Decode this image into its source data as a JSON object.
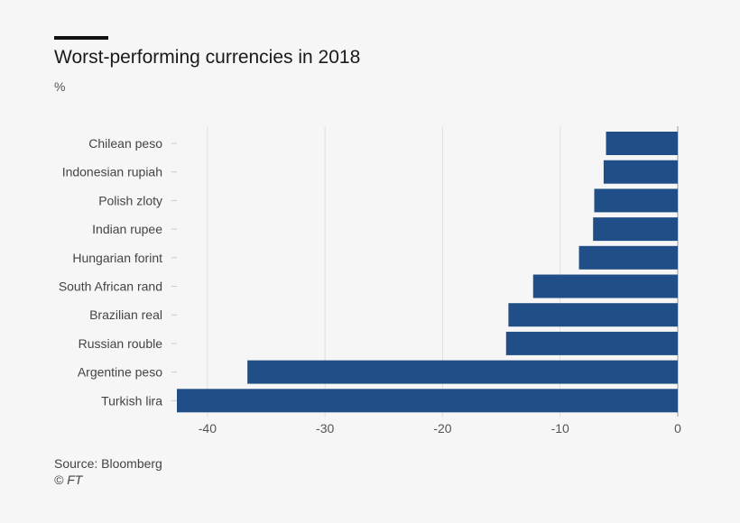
{
  "chart_data": {
    "type": "bar",
    "orientation": "horizontal",
    "title": "Worst-performing currencies in 2018",
    "subtitle": "%",
    "categories": [
      "Chilean peso",
      "Indonesian rupiah",
      "Polish zloty",
      "Indian rupee",
      "Hungarian forint",
      "South African rand",
      "Brazilian real",
      "Russian rouble",
      "Argentine peso",
      "Turkish lira"
    ],
    "values": [
      -6.1,
      -6.3,
      -7.1,
      -7.2,
      -8.4,
      -12.3,
      -14.4,
      -14.6,
      -36.6,
      -42.6
    ],
    "xlim": [
      -42.6,
      0
    ],
    "xticks": [
      -40,
      -30,
      -20,
      -10,
      0
    ],
    "xticklabels": [
      "-40",
      "-30",
      "-20",
      "-10",
      "0"
    ],
    "grid": true,
    "legend": "none",
    "bar_color": "#1f4f86",
    "source": "Source: Bloomberg",
    "credit": "© FT"
  }
}
